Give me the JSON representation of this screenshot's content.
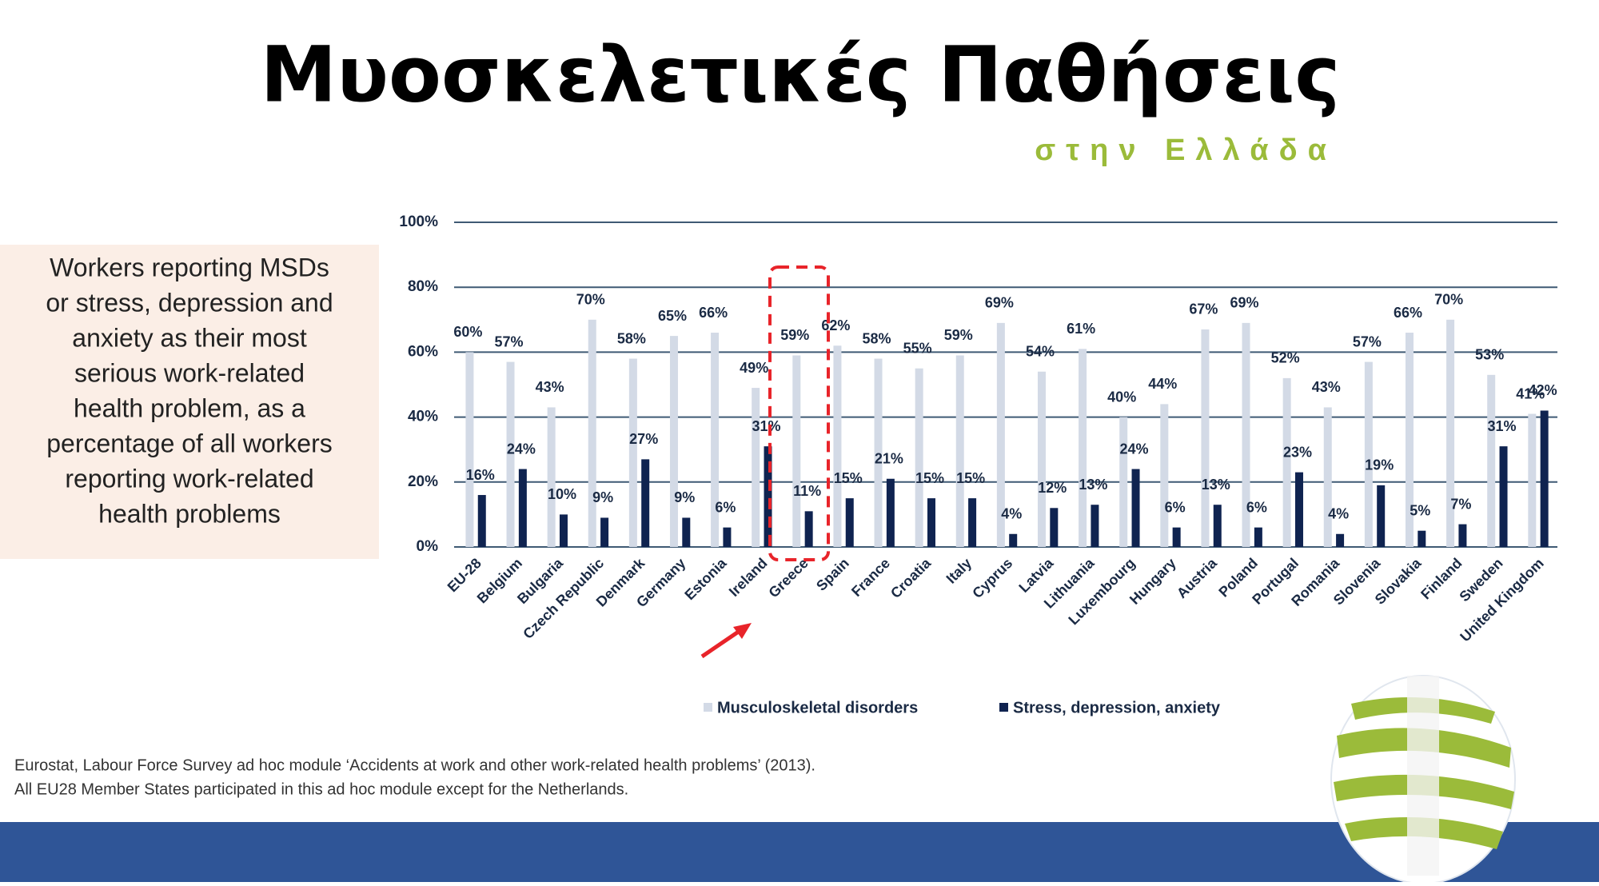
{
  "slide": {
    "title": "Μυοσκελετικές Παθήσεις",
    "subtitle": "στην Ελλάδα",
    "note": [
      "Workers reporting MSDs",
      "or stress, depression and",
      "anxiety as their most",
      "serious work-related",
      "health problem, as a",
      "percentage of all workers",
      "reporting work-related",
      "health problems"
    ],
    "source": [
      "Eurostat, Labour Force Survey ad hoc module ‘Accidents at work and other work-related health problems’ (2013).",
      "All EU28 Member States participated in this ad hoc module except for the Netherlands."
    ]
  },
  "chart_data": {
    "type": "bar",
    "categories": [
      "EU-28",
      "Belgium",
      "Bulgaria",
      "Czech Republic",
      "Denmark",
      "Germany",
      "Estonia",
      "Ireland",
      "Greece",
      "Spain",
      "France",
      "Croatia",
      "Italy",
      "Cyprus",
      "Latvia",
      "Lithuania",
      "Luxembourg",
      "Hungary",
      "Austria",
      "Poland",
      "Portugal",
      "Romania",
      "Slovenia",
      "Slovakia",
      "Finland",
      "Sweden",
      "United Kingdom"
    ],
    "series": [
      {
        "name": "Musculoskeletal disorders",
        "color": "#d3dae6",
        "values": [
          60,
          57,
          43,
          70,
          58,
          65,
          66,
          49,
          59,
          62,
          58,
          55,
          59,
          69,
          54,
          61,
          40,
          44,
          67,
          69,
          52,
          43,
          57,
          66,
          70,
          53,
          41
        ],
        "value_labels": [
          "60%",
          "57%",
          "43%",
          "70%",
          "58%",
          "65%",
          "66%",
          "49%",
          "59%",
          "62%",
          "58%",
          "55%",
          "59%",
          "69%",
          "54%",
          "61%",
          "40%",
          "44%",
          "67%",
          "69%",
          "52%",
          "43%",
          "57%",
          "66%",
          "70%",
          "53%",
          "41%"
        ]
      },
      {
        "name": "Stress, depression, anxiety",
        "color": "#0f2350",
        "values": [
          16,
          24,
          10,
          9,
          27,
          9,
          6,
          31,
          11,
          15,
          21,
          15,
          15,
          4,
          12,
          13,
          24,
          6,
          13,
          6,
          23,
          4,
          19,
          5,
          7,
          31,
          42
        ],
        "value_labels": [
          "16%",
          "24%",
          "10%",
          "9%",
          "27%",
          "9%",
          "6%",
          "31%",
          "11%",
          "15%",
          "21%",
          "15%",
          "15%",
          "4%",
          "12%",
          "13%",
          "24%",
          "6%",
          "13%",
          "6%",
          "23%",
          "4%",
          "19%",
          "5%",
          "7%",
          "31%",
          "42%"
        ]
      }
    ],
    "ylim": [
      0,
      100
    ],
    "yticks": [
      {
        "value": 0,
        "label": "0%"
      },
      {
        "value": 20,
        "label": "20%"
      },
      {
        "value": 40,
        "label": "40%"
      },
      {
        "value": 60,
        "label": "60%"
      },
      {
        "value": 80,
        "label": "80%"
      },
      {
        "value": 100,
        "label": "100%"
      }
    ],
    "grid": true,
    "legend": "bottom"
  }
}
